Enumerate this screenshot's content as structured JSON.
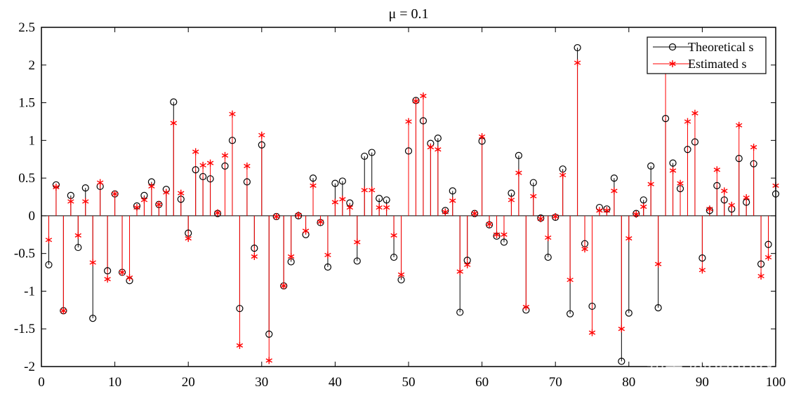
{
  "chart_data": {
    "type": "stem",
    "title": "μ = 0.1",
    "xlabel": "",
    "ylabel": "",
    "xlim": [
      0,
      100
    ],
    "ylim": [
      -2,
      2.5
    ],
    "xticks": [
      0,
      10,
      20,
      30,
      40,
      50,
      60,
      70,
      80,
      90,
      100
    ],
    "yticks": [
      -2,
      -1.5,
      -1,
      -0.5,
      0,
      0.5,
      1,
      1.5,
      2,
      2.5
    ],
    "xtick_labels": [
      "0",
      "10",
      "20",
      "30",
      "40",
      "50",
      "60",
      "70",
      "80",
      "90",
      "100"
    ],
    "ytick_labels": [
      "-2",
      "-1.5",
      "-1",
      "-0.5",
      "0",
      "0.5",
      "1",
      "1.5",
      "2",
      "2.5"
    ],
    "grid": false,
    "legend_position": "top-right",
    "x": [
      1,
      2,
      3,
      4,
      5,
      6,
      7,
      8,
      9,
      10,
      11,
      12,
      13,
      14,
      15,
      16,
      17,
      18,
      19,
      20,
      21,
      22,
      23,
      24,
      25,
      26,
      27,
      28,
      29,
      30,
      31,
      32,
      33,
      34,
      35,
      36,
      37,
      38,
      39,
      40,
      41,
      42,
      43,
      44,
      45,
      46,
      47,
      48,
      49,
      50,
      51,
      52,
      53,
      54,
      55,
      56,
      57,
      58,
      59,
      60,
      61,
      62,
      63,
      64,
      65,
      66,
      67,
      68,
      69,
      70,
      71,
      72,
      73,
      74,
      75,
      76,
      77,
      78,
      79,
      80,
      81,
      82,
      83,
      84,
      85,
      86,
      87,
      88,
      89,
      90,
      91,
      92,
      93,
      94,
      95,
      96,
      97,
      98,
      99,
      100
    ],
    "series": [
      {
        "name": "Theoretical s",
        "color": "#000000",
        "marker": "circle",
        "values": [
          -0.65,
          0.41,
          -1.26,
          0.27,
          -0.42,
          0.37,
          -1.36,
          0.39,
          -0.73,
          0.29,
          -0.75,
          -0.86,
          0.13,
          0.27,
          0.45,
          0.15,
          0.35,
          1.51,
          0.22,
          -0.23,
          0.61,
          0.52,
          0.49,
          0.03,
          0.66,
          1.0,
          -1.23,
          0.45,
          -0.43,
          0.94,
          -1.57,
          -0.01,
          -0.93,
          -0.61,
          0.0,
          -0.25,
          0.5,
          -0.09,
          -0.68,
          0.43,
          0.46,
          0.17,
          -0.6,
          0.79,
          0.84,
          0.23,
          0.21,
          -0.55,
          -0.85,
          0.86,
          1.53,
          1.26,
          0.96,
          1.03,
          0.07,
          0.33,
          -1.28,
          -0.59,
          0.03,
          0.99,
          -0.12,
          -0.27,
          -0.35,
          0.3,
          0.8,
          -1.25,
          0.44,
          -0.03,
          -0.55,
          -0.02,
          0.62,
          -1.3,
          2.23,
          -0.37,
          -1.2,
          0.11,
          0.09,
          0.5,
          -1.93,
          -1.29,
          0.03,
          0.21,
          0.66,
          -1.22,
          1.29,
          0.7,
          0.36,
          0.88,
          0.98,
          -0.56,
          0.07,
          0.4,
          0.21,
          0.09,
          0.76,
          0.18,
          0.69,
          -0.64,
          -0.38,
          0.29
        ]
      },
      {
        "name": "Estimated s",
        "color": "#ff0000",
        "marker": "asterisk",
        "values": [
          -0.32,
          0.38,
          -1.26,
          0.19,
          -0.26,
          0.19,
          -0.62,
          0.44,
          -0.84,
          0.29,
          -0.75,
          -0.82,
          0.11,
          0.21,
          0.39,
          0.15,
          0.31,
          1.23,
          0.3,
          -0.3,
          0.85,
          0.67,
          0.7,
          0.04,
          0.8,
          1.35,
          -1.72,
          0.66,
          -0.54,
          1.07,
          -1.92,
          -0.01,
          -0.93,
          -0.54,
          0.01,
          -0.2,
          0.4,
          -0.08,
          -0.52,
          0.18,
          0.22,
          0.11,
          -0.35,
          0.34,
          0.34,
          0.11,
          0.11,
          -0.26,
          -0.78,
          1.25,
          1.52,
          1.59,
          0.91,
          0.88,
          0.05,
          0.2,
          -0.74,
          -0.65,
          0.03,
          1.05,
          -0.11,
          -0.25,
          -0.25,
          0.21,
          0.57,
          -1.21,
          0.26,
          -0.04,
          -0.29,
          -0.01,
          0.54,
          -0.85,
          2.03,
          -0.44,
          -1.55,
          0.07,
          0.07,
          0.33,
          -1.5,
          -0.3,
          0.02,
          0.12,
          0.42,
          -0.64,
          2.0,
          0.6,
          0.43,
          1.25,
          1.36,
          -0.72,
          0.09,
          0.61,
          0.33,
          0.14,
          1.2,
          0.24,
          0.91,
          -0.8,
          -0.55,
          0.4
        ]
      }
    ]
  },
  "watermark": "知乎 @hennyxu"
}
